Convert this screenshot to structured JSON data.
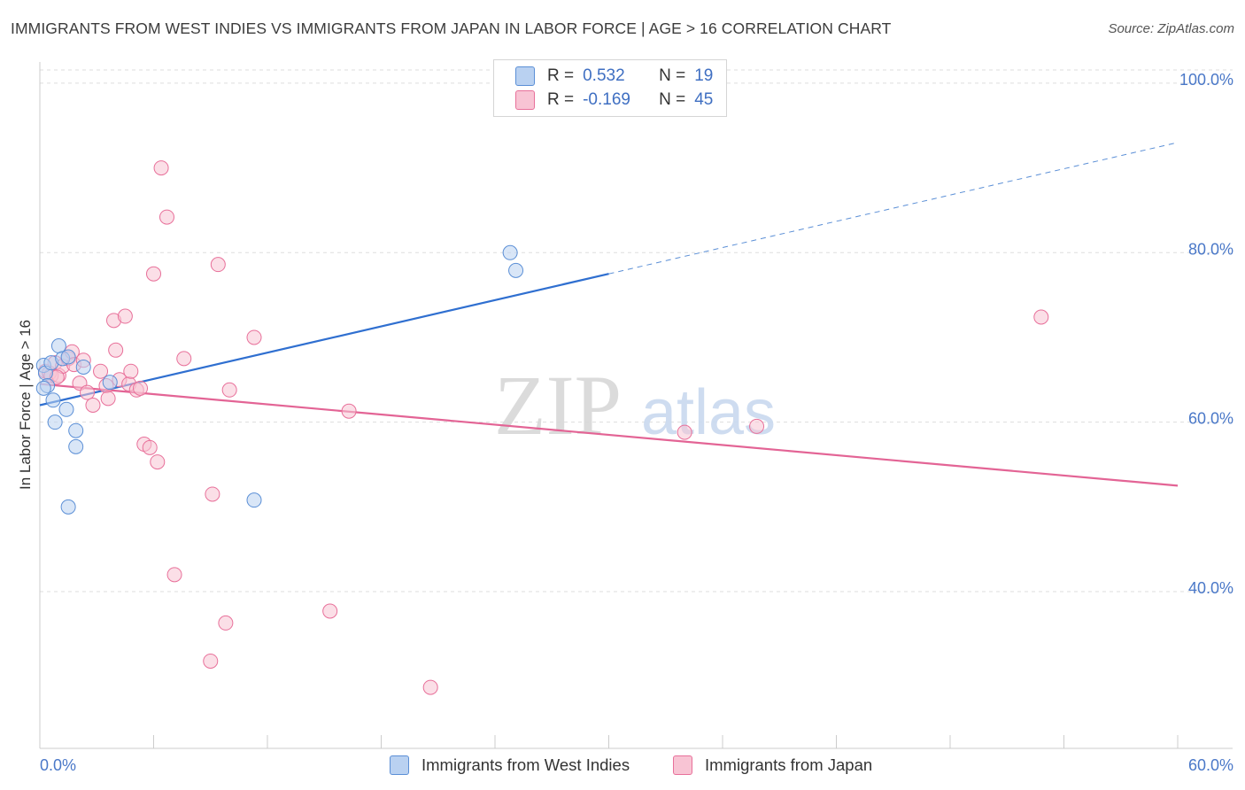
{
  "chart_data": {
    "type": "scatter",
    "title": "IMMIGRANTS FROM WEST INDIES VS IMMIGRANTS FROM JAPAN IN LABOR FORCE | AGE > 16 CORRELATION CHART",
    "source": "Source: ZipAtlas.com",
    "xlabel": "",
    "ylabel": "In Labor Force | Age > 16",
    "xlim": [
      0,
      60
    ],
    "ylim": [
      21.5,
      102.5
    ],
    "x_tick_labels": [
      "0.0%",
      "60.0%"
    ],
    "y_ticks": [
      40,
      60,
      80,
      100
    ],
    "y_tick_labels": [
      "40.0%",
      "60.0%",
      "80.0%",
      "100.0%"
    ],
    "watermark": "ZIPatlas",
    "series": [
      {
        "name": "Immigrants from West Indies",
        "color": "#5b8fd6",
        "fill": "#b9d1f1",
        "stats": {
          "r_label": "R =",
          "r": "0.532",
          "n_label": "N =",
          "n": "19"
        },
        "trend": {
          "x0": 0,
          "y0": 62.0,
          "x1": 30,
          "y1": 77.5,
          "x_ext": 60,
          "y_ext": 93.0
        },
        "points": [
          [
            0.2,
            66.7
          ],
          [
            0.3,
            65.8
          ],
          [
            0.4,
            64.3
          ],
          [
            0.6,
            67.0
          ],
          [
            0.7,
            62.6
          ],
          [
            0.8,
            60.0
          ],
          [
            1.0,
            69.0
          ],
          [
            1.2,
            67.5
          ],
          [
            1.4,
            61.5
          ],
          [
            1.5,
            67.7
          ],
          [
            1.9,
            59.0
          ],
          [
            1.9,
            57.1
          ],
          [
            2.3,
            66.5
          ],
          [
            3.7,
            64.7
          ],
          [
            11.3,
            50.8
          ],
          [
            24.8,
            80.0
          ],
          [
            25.1,
            77.9
          ],
          [
            0.2,
            64.0
          ],
          [
            1.5,
            50.0
          ]
        ]
      },
      {
        "name": "Immigrants from Japan",
        "color": "#e8709a",
        "fill": "#f8c4d4",
        "stats": {
          "r_label": "R =",
          "r": "-0.169",
          "n_label": "N =",
          "n": "45"
        },
        "trend": {
          "x0": 0,
          "y0": 64.5,
          "x1": 60,
          "y1": 52.5
        },
        "points": [
          [
            0.3,
            66.0
          ],
          [
            0.5,
            65.8
          ],
          [
            0.6,
            65.5
          ],
          [
            0.8,
            67.0
          ],
          [
            1.0,
            65.5
          ],
          [
            1.2,
            66.6
          ],
          [
            1.5,
            67.5
          ],
          [
            1.7,
            68.3
          ],
          [
            1.8,
            66.8
          ],
          [
            2.1,
            64.6
          ],
          [
            2.3,
            67.3
          ],
          [
            2.5,
            63.5
          ],
          [
            2.8,
            62.0
          ],
          [
            3.2,
            66.0
          ],
          [
            3.5,
            64.3
          ],
          [
            3.6,
            62.8
          ],
          [
            3.9,
            72.0
          ],
          [
            4.0,
            68.5
          ],
          [
            4.2,
            65.0
          ],
          [
            4.5,
            72.5
          ],
          [
            4.7,
            64.5
          ],
          [
            4.8,
            66.0
          ],
          [
            5.1,
            63.8
          ],
          [
            5.3,
            64.0
          ],
          [
            5.5,
            57.4
          ],
          [
            5.8,
            57.0
          ],
          [
            6.0,
            77.5
          ],
          [
            6.2,
            55.3
          ],
          [
            6.4,
            90.0
          ],
          [
            6.7,
            84.2
          ],
          [
            7.1,
            42.0
          ],
          [
            7.6,
            67.5
          ],
          [
            9.0,
            31.8
          ],
          [
            9.1,
            51.5
          ],
          [
            9.4,
            78.6
          ],
          [
            9.8,
            36.3
          ],
          [
            10.0,
            63.8
          ],
          [
            11.3,
            70.0
          ],
          [
            15.3,
            37.7
          ],
          [
            16.3,
            61.3
          ],
          [
            20.6,
            28.7
          ],
          [
            34.0,
            58.8
          ],
          [
            37.8,
            59.5
          ],
          [
            52.8,
            72.4
          ],
          [
            0.9,
            65.3
          ]
        ]
      }
    ]
  }
}
